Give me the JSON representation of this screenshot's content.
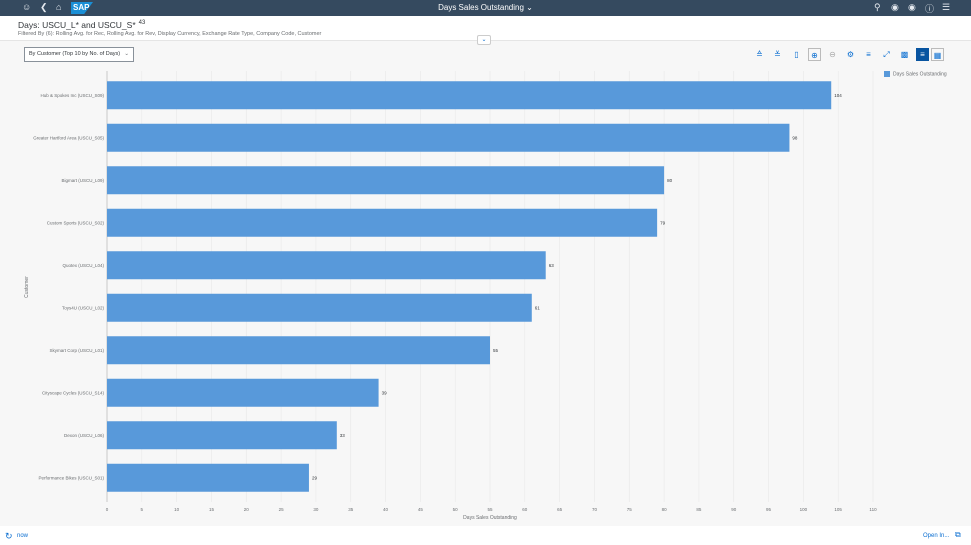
{
  "shell": {
    "title": "Days Sales Outstanding",
    "logo": "SAP",
    "left_icons": [
      "user-icon",
      "back-icon",
      "home-icon"
    ],
    "right_icons": [
      "search-icon",
      "binoculars-icon",
      "copilot-icon",
      "help-icon",
      "notifications-icon"
    ],
    "bg": "#354a5f"
  },
  "header": {
    "title": "Days: USCU_L* and USCU_S*",
    "count": "43",
    "filter": "Filtered By (6): Rolling Avg. for Rec, Rolling Avg. for Rev, Display Currency, Exchange Rate Type, Company Code, Customer"
  },
  "toolbar": {
    "view_select": "By Customer (Top 10 by No. of Days)",
    "icons": [
      "drill-up-icon",
      "drill-down-icon",
      "details-icon",
      "zoom-in-icon",
      "zoom-out-icon",
      "settings-icon",
      "sort-icon",
      "fullscreen-icon",
      "export-icon",
      "chart-view-icon",
      "table-view-icon"
    ]
  },
  "chart_data": {
    "type": "bar",
    "orientation": "horizontal",
    "categories": [
      "Hub & Spokes Inc (USCU_S09)",
      "Greater Hartford Area (USCU_S05)",
      "Bigmart (USCU_L09)",
      "Custom Sports (USCU_S02)",
      "Quotex (USCU_L04)",
      "Toys4U (USCU_L02)",
      "Skymart Corp (USCU_L01)",
      "Cityscape Cycles (USCU_S14)",
      "Dexon (USCU_L06)",
      "Performance Bikes (USCU_S01)"
    ],
    "series": [
      {
        "name": "Days Sales Outstanding",
        "values": [
          104,
          98,
          80,
          79,
          63,
          61,
          55,
          39,
          33,
          29
        ],
        "color": "#5899da"
      }
    ],
    "xlabel": "Days Sales Outstanding",
    "ylabel": "Customer",
    "xlim": [
      0,
      110
    ],
    "xticks": [
      0,
      5,
      10,
      15,
      20,
      25,
      30,
      35,
      40,
      45,
      50,
      55,
      60,
      65,
      70,
      75,
      80,
      85,
      90,
      95,
      100,
      105,
      110
    ],
    "grid": true,
    "legend": "top-right"
  },
  "footer": {
    "refresh": "now",
    "open_in": "Open In..."
  }
}
